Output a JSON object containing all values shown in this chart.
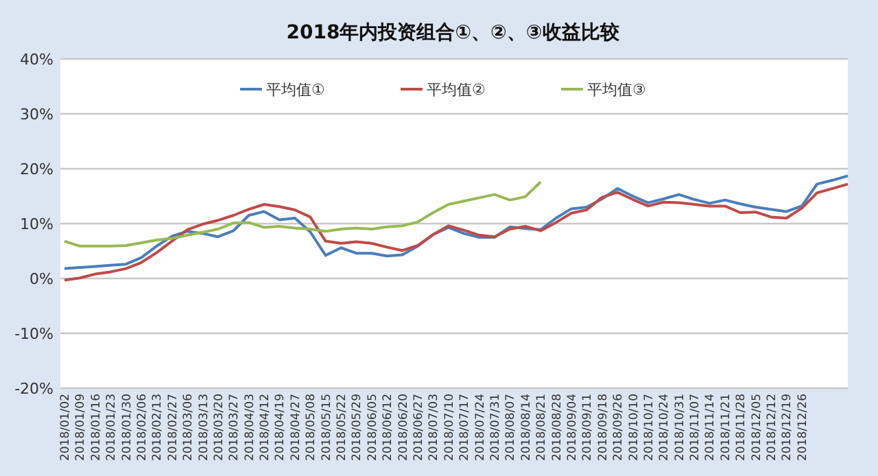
{
  "chart_data": {
    "type": "line",
    "title": "2018年内投资组合①、②、③收益比较",
    "categories": [
      "2018/01/02",
      "2018/01/09",
      "2018/01/16",
      "2018/01/23",
      "2018/01/30",
      "2018/02/06",
      "2018/02/13",
      "2018/02/27",
      "2018/03/06",
      "2018/03/13",
      "2018/03/20",
      "2018/03/27",
      "2018/04/03",
      "2018/04/12",
      "2018/04/19",
      "2018/04/27",
      "2018/05/08",
      "2018/05/15",
      "2018/05/22",
      "2018/05/29",
      "2018/06/05",
      "2018/06/12",
      "2018/06/20",
      "2018/06/27",
      "2018/07/03",
      "2018/07/10",
      "2018/07/17",
      "2018/07/24",
      "2018/07/31",
      "2018/08/07",
      "2018/08/14",
      "2018/08/21",
      "2018/08/28",
      "2018/09/04",
      "2018/09/11",
      "2018/09/18",
      "2018/09/26",
      "2018/10/10",
      "2018/10/17",
      "2018/10/24",
      "2018/10/31",
      "2018/11/07",
      "2018/11/14",
      "2018/11/21",
      "2018/11/28",
      "2018/12/05",
      "2018/12/12",
      "2018/12/19",
      "2018/12/26",
      null,
      null,
      null
    ],
    "series": [
      {
        "name": "平均值①",
        "color": "#4a7ebb",
        "values": [
          1.8,
          2.0,
          2.2,
          2.4,
          2.6,
          3.8,
          5.9,
          7.7,
          8.6,
          8.2,
          7.6,
          8.7,
          11.5,
          12.2,
          10.7,
          11.0,
          8.5,
          4.2,
          5.6,
          4.6,
          4.6,
          4.1,
          4.3,
          5.9,
          8.0,
          9.3,
          8.2,
          7.5,
          7.5,
          9.4,
          9.1,
          8.9,
          11.0,
          12.7,
          13.0,
          14.5,
          16.4,
          15.0,
          13.8,
          14.5,
          15.3,
          14.4,
          13.7,
          14.3,
          13.6,
          13.0,
          12.6,
          12.2,
          13.2,
          17.2,
          17.9,
          18.7
        ]
      },
      {
        "name": "平均值②",
        "color": "#be4b48",
        "values": [
          -0.3,
          0.1,
          0.8,
          1.2,
          1.8,
          2.9,
          4.7,
          6.8,
          8.9,
          9.9,
          10.6,
          11.5,
          12.6,
          13.5,
          13.1,
          12.5,
          11.2,
          6.8,
          6.4,
          6.7,
          6.4,
          5.7,
          5.1,
          6.0,
          8.0,
          9.6,
          8.8,
          7.9,
          7.6,
          9.0,
          9.5,
          8.7,
          10.2,
          11.9,
          12.5,
          14.8,
          15.7,
          14.4,
          13.2,
          13.9,
          13.8,
          13.5,
          13.2,
          13.2,
          12.0,
          12.1,
          11.2,
          11.0,
          12.8,
          15.6,
          16.4,
          17.2
        ]
      },
      {
        "name": "平均值③",
        "color": "#98b954",
        "values": [
          6.8,
          5.9,
          5.9,
          5.9,
          6.0,
          6.5,
          7.0,
          7.3,
          7.9,
          8.4,
          9.0,
          10.1,
          10.2,
          9.3,
          9.5,
          9.2,
          9.0,
          8.6,
          9.0,
          9.2,
          9.0,
          9.4,
          9.6,
          10.3,
          12.0,
          13.5,
          14.1,
          14.7,
          15.3,
          14.3,
          14.9,
          17.6,
          null,
          null,
          null,
          null,
          null,
          null,
          null,
          null,
          null,
          null,
          null,
          null,
          null,
          null,
          null,
          null,
          null,
          null,
          null,
          null
        ]
      }
    ],
    "ylim": [
      -20,
      40
    ],
    "yticks": [
      {
        "value": -20,
        "label": "-20%"
      },
      {
        "value": -10,
        "label": "-10%"
      },
      {
        "value": 0,
        "label": "0%"
      },
      {
        "value": 10,
        "label": "10%"
      },
      {
        "value": 20,
        "label": "20%"
      },
      {
        "value": 30,
        "label": "30%"
      },
      {
        "value": 40,
        "label": "40%"
      }
    ],
    "grid": "y",
    "legend": "top",
    "marker": "none",
    "line_style": "solid"
  }
}
